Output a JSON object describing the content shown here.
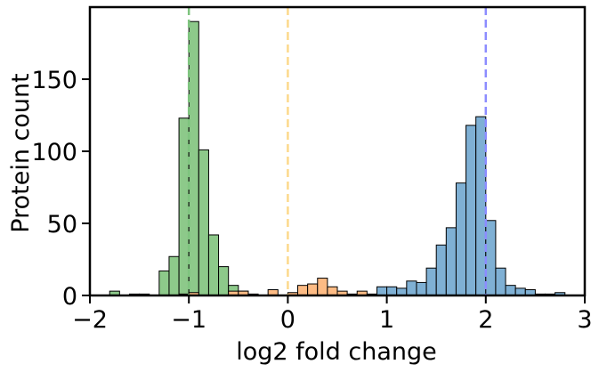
{
  "chart_data": {
    "type": "histogram",
    "xlabel": "log2 fold change",
    "ylabel": "Protein count",
    "xlim": [
      -2,
      3
    ],
    "ylim": [
      0,
      200
    ],
    "xticks": [
      {
        "value": -2,
        "label": "−2"
      },
      {
        "value": -1,
        "label": "−1"
      },
      0,
      1,
      2,
      3
    ],
    "yticks": [
      0,
      50,
      100,
      150
    ],
    "bins": [
      -1.8,
      -1.7,
      -1.6,
      -1.5,
      -1.4,
      -1.3,
      -1.2,
      -1.1,
      -1.0,
      -0.9,
      -0.8,
      -0.7,
      -0.6,
      -0.5,
      -0.4,
      -0.3,
      -0.2,
      -0.1,
      0.0,
      0.1,
      0.2,
      0.3,
      0.4,
      0.5,
      0.6,
      0.7,
      0.8,
      0.9,
      1.0,
      1.1,
      1.2,
      1.3,
      1.4,
      1.5,
      1.6,
      1.7,
      1.8,
      1.9,
      2.0,
      2.1,
      2.2,
      2.3,
      2.4,
      2.5,
      2.6,
      2.7,
      2.8
    ],
    "series": [
      {
        "color": "#8dc98a",
        "values": [
          3,
          0,
          1,
          1,
          0,
          17,
          27,
          123,
          190,
          101,
          42,
          20,
          7,
          3,
          0,
          0,
          0,
          0,
          0,
          0,
          0,
          0,
          0,
          0,
          0,
          0,
          0,
          0,
          0,
          0,
          0,
          0,
          0,
          0,
          0,
          0,
          0,
          0,
          0,
          0,
          0,
          0,
          0,
          0,
          0,
          0
        ]
      },
      {
        "color": "#fdbb84",
        "values": [
          0,
          0,
          0,
          0,
          0,
          0,
          0,
          1,
          2,
          0,
          0,
          0,
          3,
          3,
          1,
          0,
          4,
          0,
          2,
          7,
          8,
          12,
          6,
          3,
          1,
          3,
          1,
          1,
          0,
          0,
          0,
          0,
          0,
          0,
          0,
          0,
          0,
          0,
          0,
          0,
          0,
          0,
          0,
          0,
          0,
          0
        ]
      },
      {
        "color": "#7fb0d4",
        "values": [
          0,
          0,
          0,
          0,
          0,
          0,
          0,
          0,
          0,
          0,
          0,
          0,
          0,
          0,
          0,
          0,
          0,
          0,
          0,
          0,
          0,
          0,
          0,
          0,
          0,
          0,
          0,
          6,
          6,
          5,
          10,
          9,
          19,
          35,
          47,
          78,
          118,
          124,
          52,
          19,
          7,
          5,
          4,
          1,
          1,
          2
        ]
      }
    ],
    "vlines": [
      {
        "x": -1,
        "color": "#7fc47f"
      },
      {
        "x": 0,
        "color": "#fcd98c"
      },
      {
        "x": 2,
        "color": "#8c8cff"
      }
    ]
  }
}
